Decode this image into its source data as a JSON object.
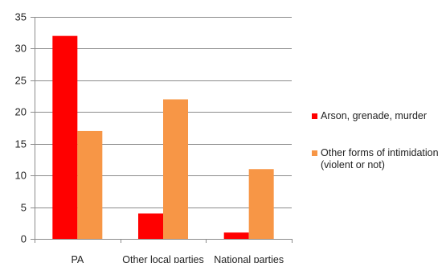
{
  "chart_data": {
    "type": "bar",
    "title": "",
    "xlabel": "",
    "ylabel": "",
    "ylim": [
      0,
      35
    ],
    "yticks": [
      0,
      5,
      10,
      15,
      20,
      25,
      30,
      35
    ],
    "categories": [
      "PA",
      "Other local parties",
      "National parties"
    ],
    "series": [
      {
        "name": "Arson, grenade, murder",
        "color": "#ff0000",
        "values": [
          32,
          4,
          1
        ]
      },
      {
        "name": "Other forms of intimidation (violent or not)",
        "color": "#f79646",
        "values": [
          17,
          22,
          11
        ]
      }
    ],
    "grid": true,
    "legend_position": "right"
  },
  "legend": {
    "item1_label": "Arson, grenade, murder",
    "item2_line1": "Other forms of intimidation",
    "item2_line2": "(violent or not)"
  }
}
